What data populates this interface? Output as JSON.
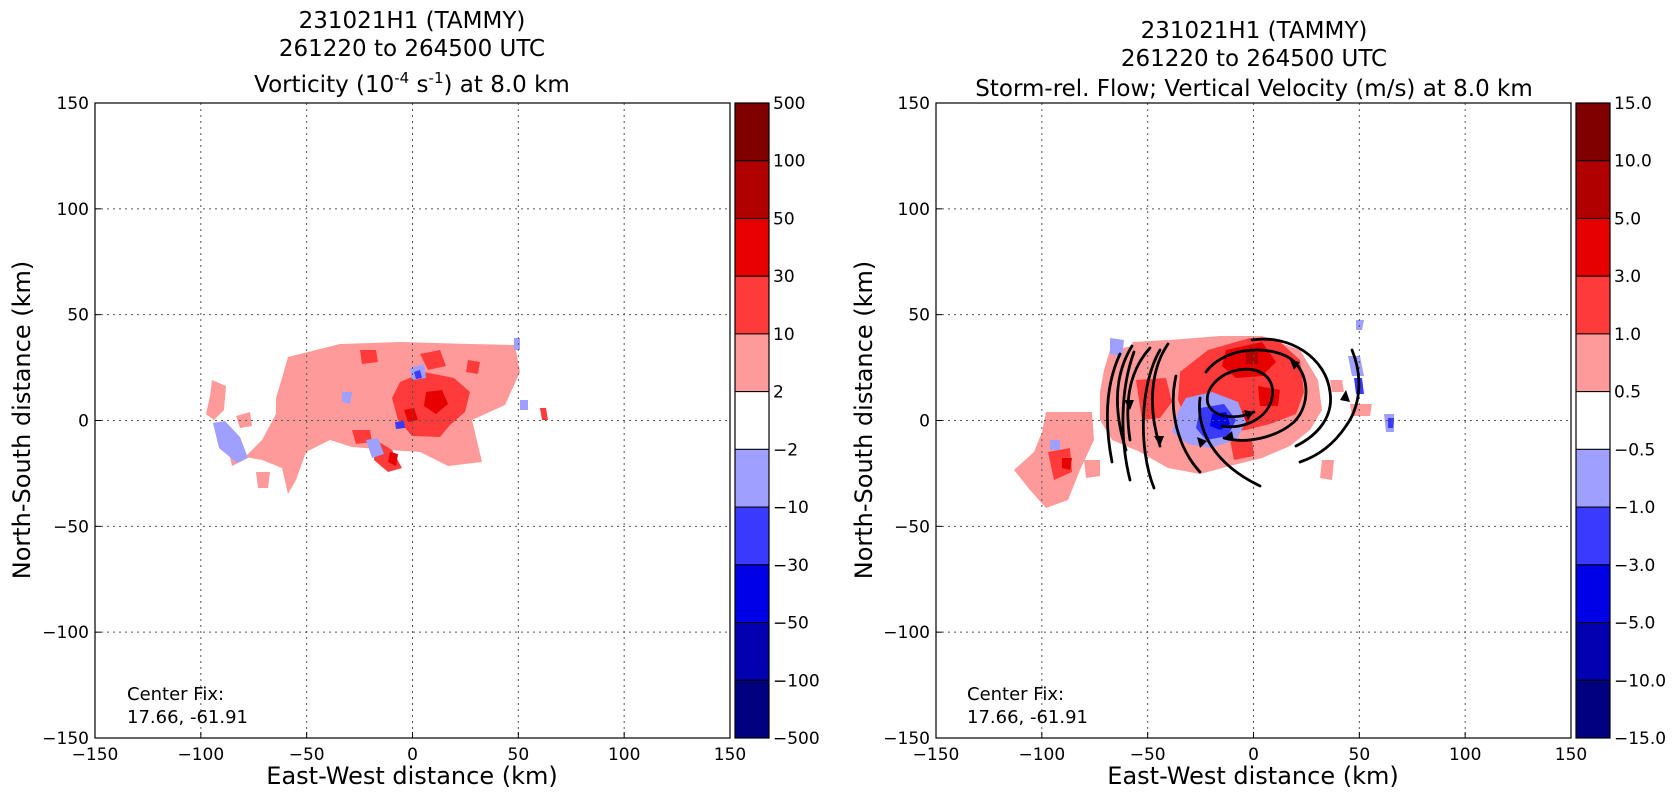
{
  "colors": {
    "levels": [
      "#000080",
      "#0000b0",
      "#0000e6",
      "#3a3aff",
      "#9f9fff",
      "#ffffff",
      "#ff9a9a",
      "#ff3a3a",
      "#e60000",
      "#b00000",
      "#800000"
    ]
  },
  "chart_data": [
    {
      "type": "heatmap",
      "title_line1": "231021H1 (TAMMY)",
      "title_line2": "261220 to 264500 UTC",
      "title_line3": {
        "prefix": "Vorticity (10",
        "sup1": "-4",
        "mid": " s",
        "sup2": "-1",
        "suffix": ") at 8.0 km"
      },
      "xlabel": "East-West distance (km)",
      "ylabel": "North-South distance (km)",
      "xlim": [
        -150,
        150
      ],
      "ylim": [
        -150,
        150
      ],
      "xticks": [
        "−150",
        "−100",
        "−50",
        "0",
        "50",
        "100",
        "150"
      ],
      "yticks": [
        "150",
        "100",
        "50",
        "0",
        "−50",
        "−100",
        "−150"
      ],
      "xtick_values": [
        -150,
        -100,
        -50,
        0,
        50,
        100,
        150
      ],
      "ytick_values": [
        150,
        100,
        50,
        0,
        -50,
        -100,
        -150
      ],
      "grid": true,
      "colorbar_labels": [
        "500",
        "100",
        "50",
        "30",
        "10",
        "2",
        "−2",
        "−10",
        "−30",
        "−50",
        "−100",
        "−500"
      ],
      "annotation_line1": "Center Fix:",
      "annotation_line2": "17.66, -61.91",
      "streamlines": false
    },
    {
      "type": "heatmap",
      "title_line1": "231021H1 (TAMMY)",
      "title_line2": "261220 to 264500 UTC",
      "title_line3": {
        "prefix": "Storm-rel. Flow; Vertical Velocity (m/s) at 8.0 km",
        "sup1": "",
        "mid": "",
        "sup2": "",
        "suffix": ""
      },
      "xlabel": "East-West distance (km)",
      "ylabel": "North-South distance (km)",
      "xlim": [
        -150,
        150
      ],
      "ylim": [
        -150,
        150
      ],
      "xticks": [
        "−150",
        "−100",
        "−50",
        "0",
        "50",
        "100",
        "150"
      ],
      "yticks": [
        "150",
        "100",
        "50",
        "0",
        "−50",
        "−100",
        "−150"
      ],
      "xtick_values": [
        -150,
        -100,
        -50,
        0,
        50,
        100,
        150
      ],
      "ytick_values": [
        150,
        100,
        50,
        0,
        -50,
        -100,
        -150
      ],
      "grid": true,
      "colorbar_labels": [
        "15.0",
        "10.0",
        "5.0",
        "3.0",
        "1.0",
        "0.5",
        "−0.5",
        "−1.0",
        "−3.0",
        "−5.0",
        "−10.0",
        "−15.0"
      ],
      "annotation_line1": "Center Fix:",
      "annotation_line2": "17.66, -61.91",
      "streamlines": true
    }
  ]
}
